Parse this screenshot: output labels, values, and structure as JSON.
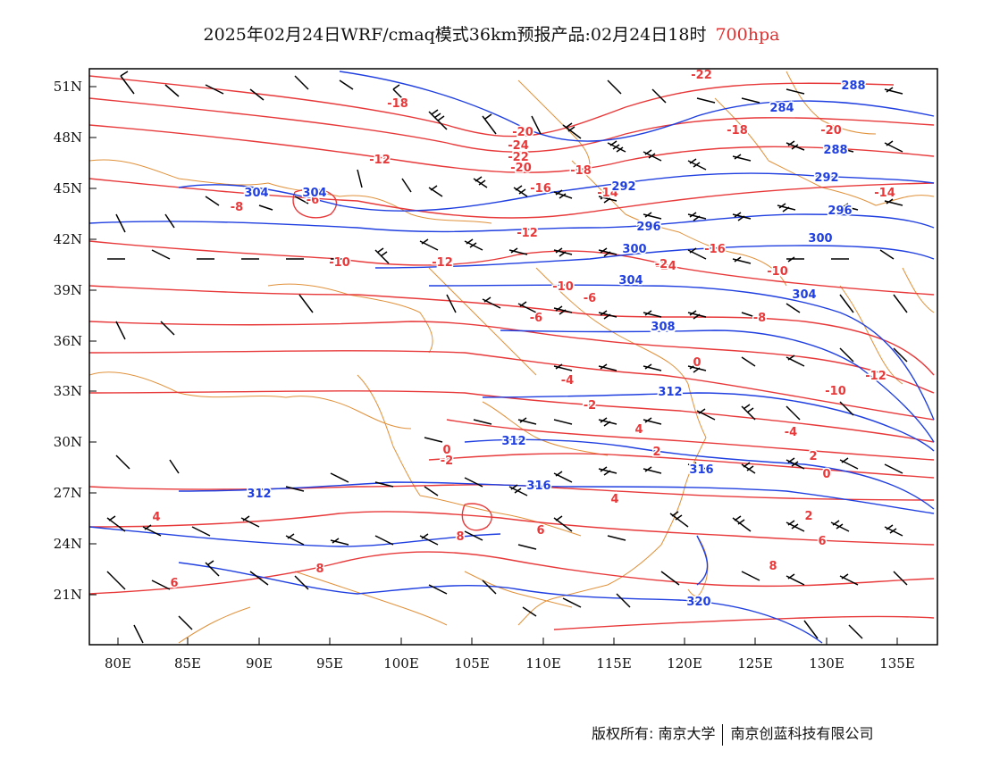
{
  "title": {
    "main": "2025年02月24日WRF/cmaq模式36km预报产品:02月24日18时",
    "level": "700hpa"
  },
  "map": {
    "lon_labels": [
      "80E",
      "85E",
      "90E",
      "95E",
      "100E",
      "105E",
      "110E",
      "115E",
      "120E",
      "125E",
      "130E",
      "135E"
    ],
    "lat_labels": [
      "51N",
      "48N",
      "45N",
      "42N",
      "39N",
      "36N",
      "33N",
      "30N",
      "27N",
      "24N",
      "21N"
    ],
    "colors": {
      "temperature": "#e8393a",
      "height": "#1f3fe0",
      "boundary": "#e0913a",
      "wind": "#000000",
      "frame": "#000000"
    },
    "temp_labels": [
      "-22",
      "-18",
      "-20",
      "-24",
      "-22",
      "-20",
      "-18",
      "-16",
      "-14",
      "-12",
      "-10",
      "-6",
      "-8",
      "-6",
      "-10",
      "-12",
      "-14",
      "-16",
      "-18",
      "-20",
      "-14",
      "-12",
      "-10",
      "-8",
      "-6",
      "-4",
      "-2",
      "0",
      "2",
      "4",
      "6",
      "8",
      "-2",
      "0",
      "2",
      "4",
      "6",
      "8",
      "-10",
      "-12",
      "-4",
      "-2",
      "0",
      "2",
      "4",
      "6",
      "8"
    ],
    "height_labels": [
      "288",
      "284",
      "288",
      "292",
      "296",
      "300",
      "304",
      "308",
      "312",
      "316",
      "320",
      "304",
      "304",
      "292",
      "296",
      "300",
      "304",
      "308",
      "312",
      "316",
      "312"
    ]
  },
  "footer": {
    "copyright": "版权所有: 南京大学",
    "company": "南京创蓝科技有限公司"
  }
}
